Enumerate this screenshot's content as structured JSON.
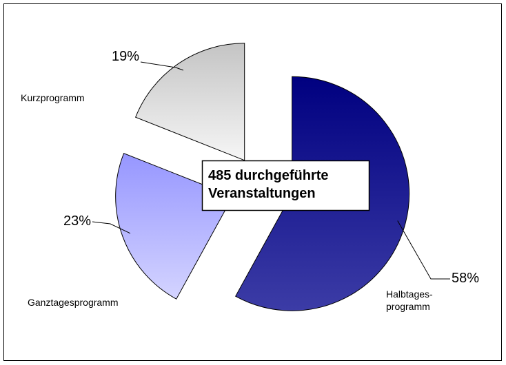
{
  "chart_data": {
    "type": "pie",
    "categories": [
      "Halbtages-\nprogramm",
      "Ganztagesprogramm",
      "Kurzprogramm"
    ],
    "values": [
      58,
      23,
      19
    ],
    "value_labels": [
      "58%",
      "23%",
      "19%"
    ],
    "colors": [
      "#1a1a8c",
      "#b0b0ff",
      "#dedede"
    ],
    "annotation": "485 durchgeführte\nVeranstaltungen"
  }
}
